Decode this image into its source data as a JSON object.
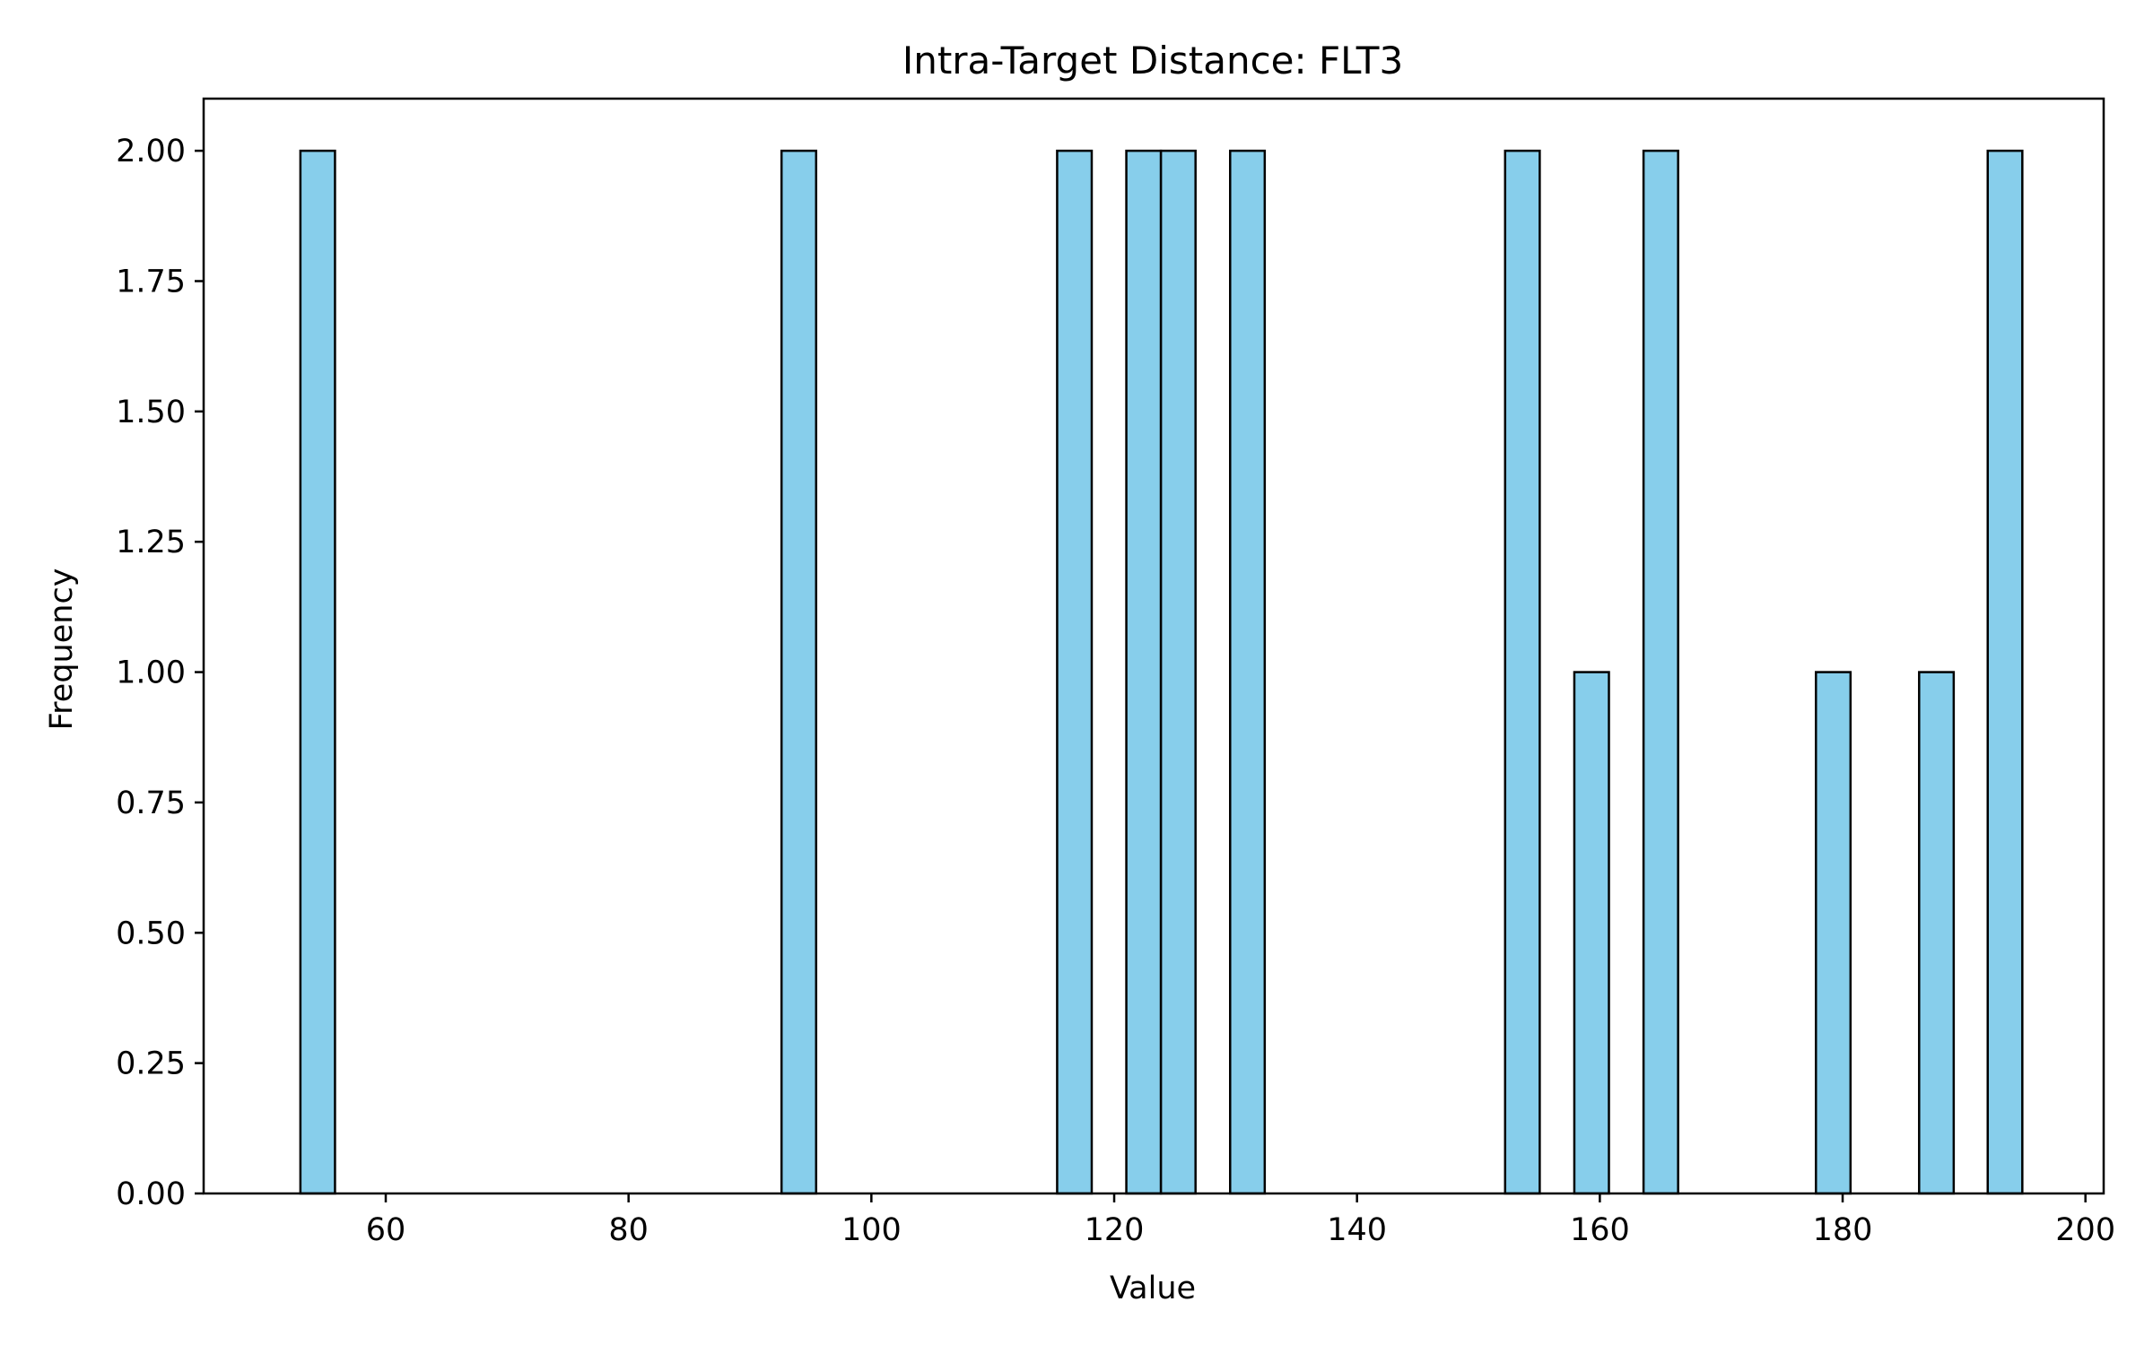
{
  "chart_data": {
    "type": "bar",
    "title": "Intra-Target Distance: FLT3",
    "xlabel": "Value",
    "ylabel": "Frequency",
    "xlim": [
      45.0,
      201.5
    ],
    "ylim": [
      0,
      2.1
    ],
    "bin_width": 2.85,
    "x_ticks": [
      {
        "value": 60,
        "label": "60"
      },
      {
        "value": 80,
        "label": "80"
      },
      {
        "value": 100,
        "label": "100"
      },
      {
        "value": 120,
        "label": "120"
      },
      {
        "value": 140,
        "label": "140"
      },
      {
        "value": 160,
        "label": "160"
      },
      {
        "value": 180,
        "label": "180"
      },
      {
        "value": 200,
        "label": "200"
      }
    ],
    "y_ticks": [
      {
        "value": 0,
        "label": "0.00"
      },
      {
        "value": 0.25,
        "label": "0.25"
      },
      {
        "value": 0.5,
        "label": "0.50"
      },
      {
        "value": 0.75,
        "label": "0.75"
      },
      {
        "value": 1.0,
        "label": "1.00"
      },
      {
        "value": 1.25,
        "label": "1.25"
      },
      {
        "value": 1.5,
        "label": "1.50"
      },
      {
        "value": 1.75,
        "label": "1.75"
      },
      {
        "value": 2.0,
        "label": "2.00"
      }
    ],
    "bins": [
      {
        "x0": 52.97,
        "count": 2
      },
      {
        "x0": 92.6,
        "count": 2
      },
      {
        "x0": 115.3,
        "count": 2
      },
      {
        "x0": 121.0,
        "count": 2
      },
      {
        "x0": 123.85,
        "count": 2
      },
      {
        "x0": 129.55,
        "count": 2
      },
      {
        "x0": 152.2,
        "count": 2
      },
      {
        "x0": 157.9,
        "count": 1
      },
      {
        "x0": 163.6,
        "count": 2
      },
      {
        "x0": 177.8,
        "count": 1
      },
      {
        "x0": 186.3,
        "count": 1
      },
      {
        "x0": 191.95,
        "count": 2
      }
    ],
    "bar_color": "#87ceeb",
    "edge_color": "#000000",
    "grid": false,
    "legend": "none"
  }
}
